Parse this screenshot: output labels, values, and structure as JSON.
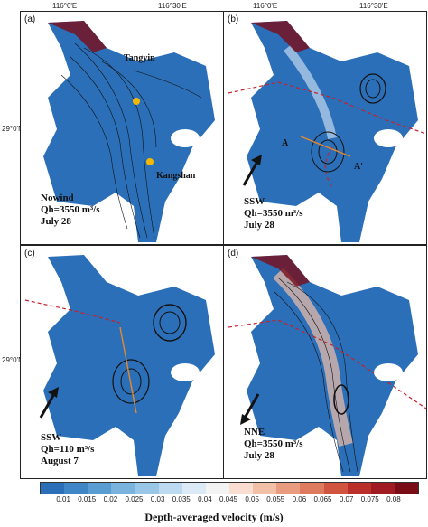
{
  "axes": {
    "lon1": "116°0'E",
    "lon2": "116°30'E",
    "lat": "29°0'N"
  },
  "panels": [
    {
      "label": "(a)",
      "lines": [
        "Nowind",
        "Qh=3550 m³/s",
        "July 28"
      ]
    },
    {
      "label": "(b)",
      "lines": [
        "SSW",
        "Qh=3550 m³/s",
        "July 28"
      ]
    },
    {
      "label": "(c)",
      "lines": [
        "SSW",
        "Qh=110 m³/s",
        "August 7"
      ]
    },
    {
      "label": "(d)",
      "lines": [
        "NNE",
        "Qh=3550 m³/s",
        "July 28"
      ]
    }
  ],
  "places": {
    "tangyin": "Tangyin",
    "kangshan": "Kangshan",
    "section_a": "A",
    "section_a_prime": "A'"
  },
  "colorbar": {
    "ticks": [
      "0.01",
      "0.015",
      "0.02",
      "0.025",
      "0.03",
      "0.035",
      "0.04",
      "0.045",
      "0.05",
      "0.055",
      "0.06",
      "0.065",
      "0.07",
      "0.075",
      "0.08"
    ],
    "colors": [
      "#2b6fb8",
      "#3e86c6",
      "#5a9dd2",
      "#7ab3de",
      "#9ac7e8",
      "#bcdaf1",
      "#dbeaf6",
      "#f3f3f3",
      "#f9ddd0",
      "#f2bfa7",
      "#e99c80",
      "#de7a5e",
      "#d0543f",
      "#bb2f2b",
      "#a01a22",
      "#7a0c18"
    ],
    "title": "Depth-averaged velocity (m/s)"
  }
}
